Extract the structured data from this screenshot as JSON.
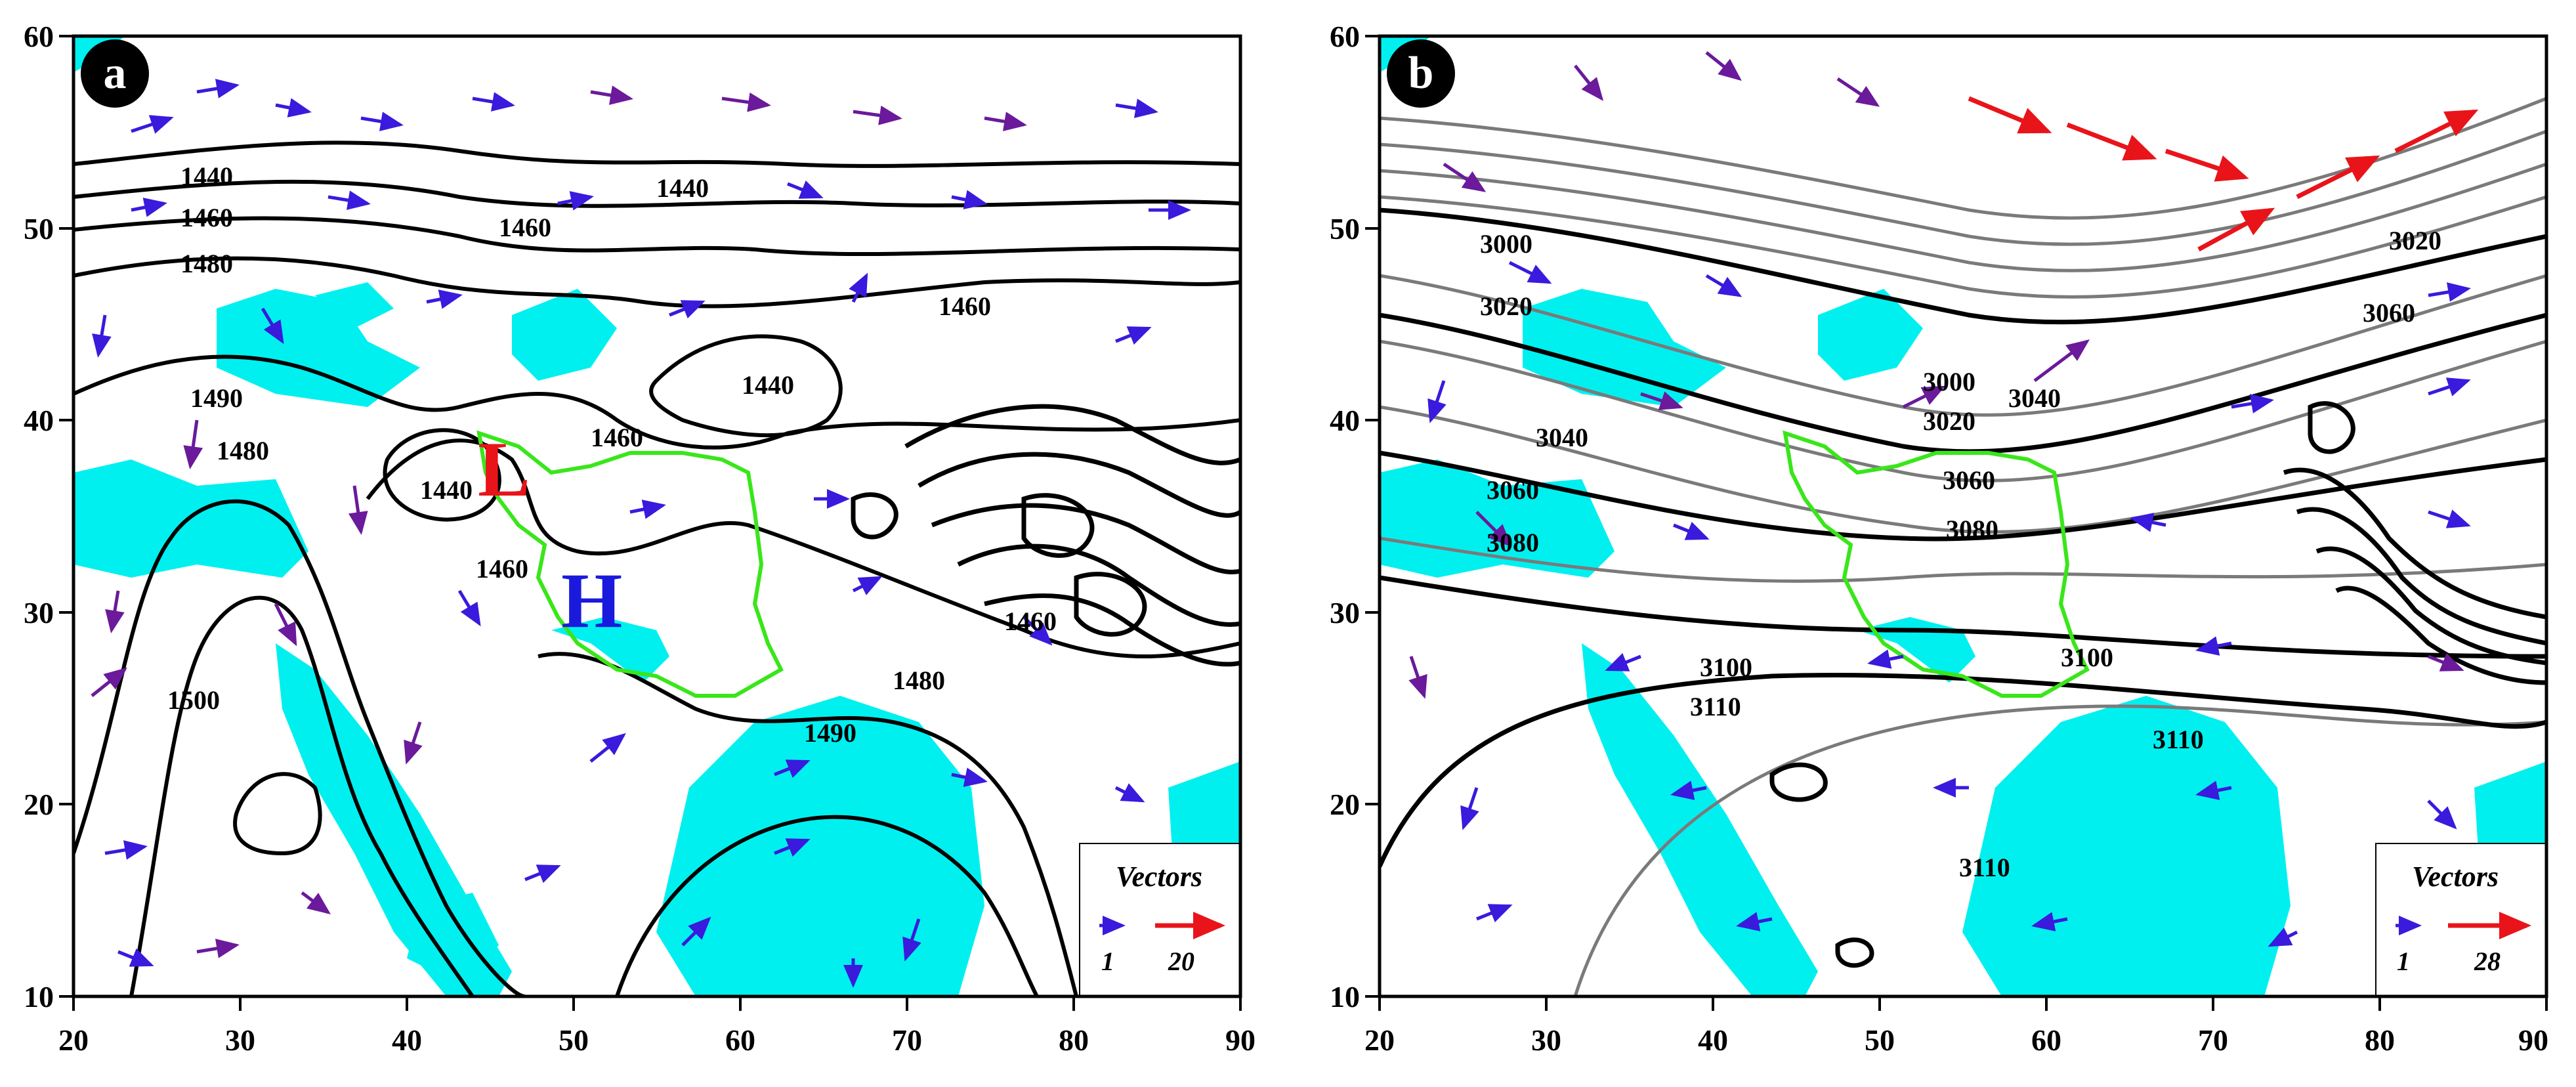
{
  "panels": [
    {
      "letter": "a",
      "x_ticks": [
        "20",
        "30",
        "40",
        "50",
        "60",
        "70",
        "80",
        "90"
      ],
      "y_ticks": [
        "10",
        "20",
        "30",
        "40",
        "50",
        "60"
      ],
      "contour_labels": [
        "1440",
        "1460",
        "1480",
        "1460",
        "1440",
        "1460",
        "1490",
        "1480",
        "1440",
        "1460",
        "1460",
        "1440",
        "1460",
        "1500",
        "1460",
        "1480",
        "1490"
      ],
      "system_labels": [
        {
          "text": "L",
          "color": "#e8141a"
        },
        {
          "text": "H",
          "color": "#1a1adc"
        }
      ],
      "legend": {
        "title": "Vectors",
        "min": "1",
        "max": "20"
      }
    },
    {
      "letter": "b",
      "x_ticks": [
        "20",
        "30",
        "40",
        "50",
        "60",
        "70",
        "80",
        "90"
      ],
      "y_ticks": [
        "10",
        "20",
        "30",
        "40",
        "50",
        "60"
      ],
      "contour_labels": [
        "3000",
        "3020",
        "3040",
        "3060",
        "3080",
        "3000",
        "3020",
        "3040",
        "3060",
        "3080",
        "3100",
        "3110",
        "3100",
        "3110",
        "3110",
        "3020",
        "3060"
      ],
      "legend": {
        "title": "Vectors",
        "min": "1",
        "max": "28"
      }
    }
  ],
  "colors": {
    "shading": "#00f0f0",
    "contour": "#000000",
    "contour_gray": "#7a7a7a",
    "vector_blue": "#3a1adc",
    "vector_purple": "#6a1a9a",
    "vector_red": "#e8141a",
    "boundary": "#39e61a"
  }
}
